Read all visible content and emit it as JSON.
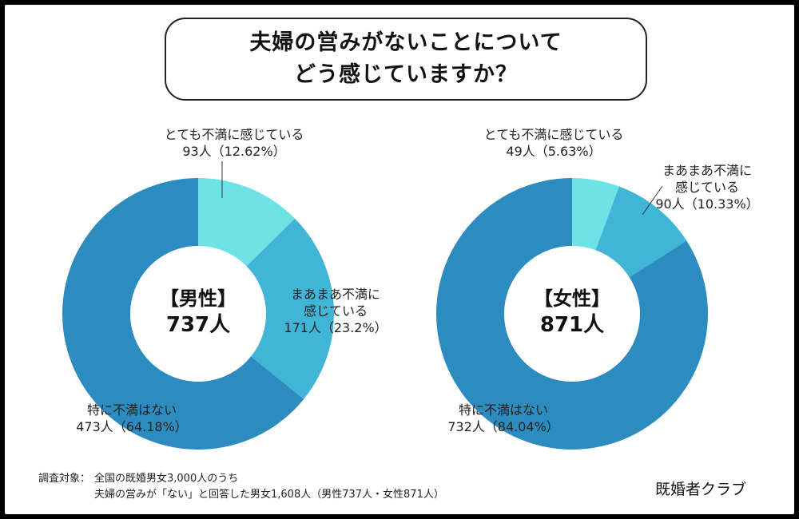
{
  "title": {
    "line1": "夫婦の営みがないことについて",
    "line2": "どう感じていますか？"
  },
  "chart_data": [
    {
      "type": "pie",
      "center_label": "【男性】",
      "center_value": "737人",
      "slices": [
        {
          "label_line1": "とても不満に感じている",
          "label_line2": "",
          "count_label": "93人（12.62%）",
          "count": 93,
          "percent": 12.62,
          "color": "#6ee3e6"
        },
        {
          "label_line1": "まあまあ不満に",
          "label_line2": "感じている",
          "count_label": "171人（23.2%）",
          "count": 171,
          "percent": 23.2,
          "color": "#40b5d6"
        },
        {
          "label_line1": "特に不満はない",
          "label_line2": "",
          "count_label": "473人（64.18%）",
          "count": 473,
          "percent": 64.18,
          "color": "#2c8cbf"
        }
      ]
    },
    {
      "type": "pie",
      "center_label": "【女性】",
      "center_value": "871人",
      "slices": [
        {
          "label_line1": "とても不満に感じている",
          "label_line2": "",
          "count_label": "49人（5.63%）",
          "count": 49,
          "percent": 5.63,
          "color": "#6ee3e6"
        },
        {
          "label_line1": "まあまあ不満に",
          "label_line2": "感じている",
          "count_label": "90人（10.33%）",
          "count": 90,
          "percent": 10.33,
          "color": "#40b5d6"
        },
        {
          "label_line1": "特に不満はない",
          "label_line2": "",
          "count_label": "732人（84.04%）",
          "count": 732,
          "percent": 84.04,
          "color": "#2c8cbf"
        }
      ]
    }
  ],
  "footnote": {
    "key": "調査対象：",
    "line1": "全国の既婚男女3,000人のうち",
    "line2": "夫婦の営みが「ない」と回答した男女1,608人（男性737人・女性871人）"
  },
  "brand": "既婚者クラブ"
}
